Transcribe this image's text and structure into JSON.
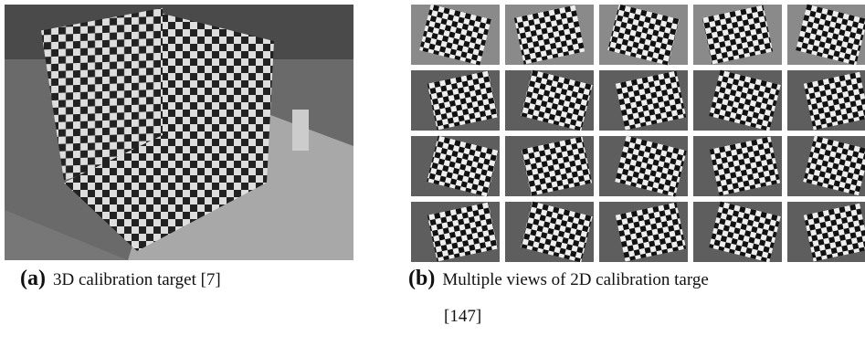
{
  "figure": {
    "subfigures": [
      {
        "label": "(a)",
        "caption": "3D calibration target [7]"
      },
      {
        "label": "(b)",
        "caption_lines": [
          "Multiple views of 2D calibration targe",
          "[147]"
        ]
      }
    ]
  }
}
